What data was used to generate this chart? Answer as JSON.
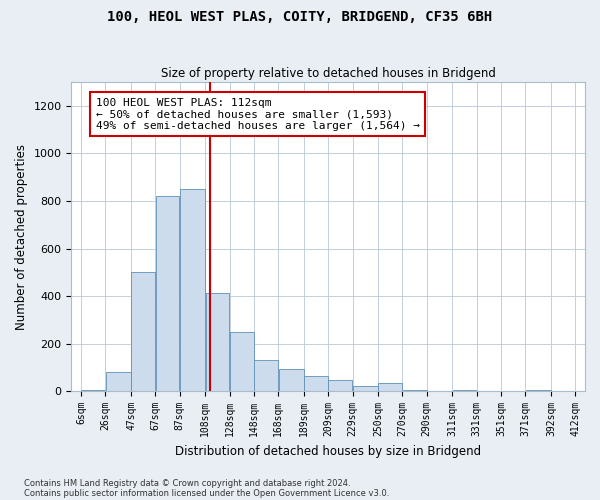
{
  "title": "100, HEOL WEST PLAS, COITY, BRIDGEND, CF35 6BH",
  "subtitle": "Size of property relative to detached houses in Bridgend",
  "xlabel": "Distribution of detached houses by size in Bridgend",
  "ylabel": "Number of detached properties",
  "bin_edges": [
    6,
    26,
    47,
    67,
    87,
    108,
    128,
    148,
    168,
    189,
    209,
    229,
    250,
    270,
    290,
    311,
    331,
    351,
    371,
    392,
    412
  ],
  "bar_heights": [
    5,
    80,
    500,
    820,
    850,
    415,
    250,
    130,
    95,
    65,
    45,
    20,
    35,
    5,
    0,
    5,
    0,
    0,
    5,
    0
  ],
  "bar_color": "#ccdcec",
  "bar_edge_color": "#6090b8",
  "vline_x": 112,
  "vline_color": "#cc0000",
  "annotation_text": "100 HEOL WEST PLAS: 112sqm\n← 50% of detached houses are smaller (1,593)\n49% of semi-detached houses are larger (1,564) →",
  "annotation_box_color": "#ffffff",
  "annotation_box_edge": "#cc0000",
  "ylim": [
    0,
    1300
  ],
  "yticks": [
    0,
    200,
    400,
    600,
    800,
    1000,
    1200
  ],
  "footer_line1": "Contains HM Land Registry data © Crown copyright and database right 2024.",
  "footer_line2": "Contains public sector information licensed under the Open Government Licence v3.0.",
  "bg_color": "#e8eef4",
  "plot_bg_color": "#ffffff",
  "grid_color": "#b8c8d8"
}
